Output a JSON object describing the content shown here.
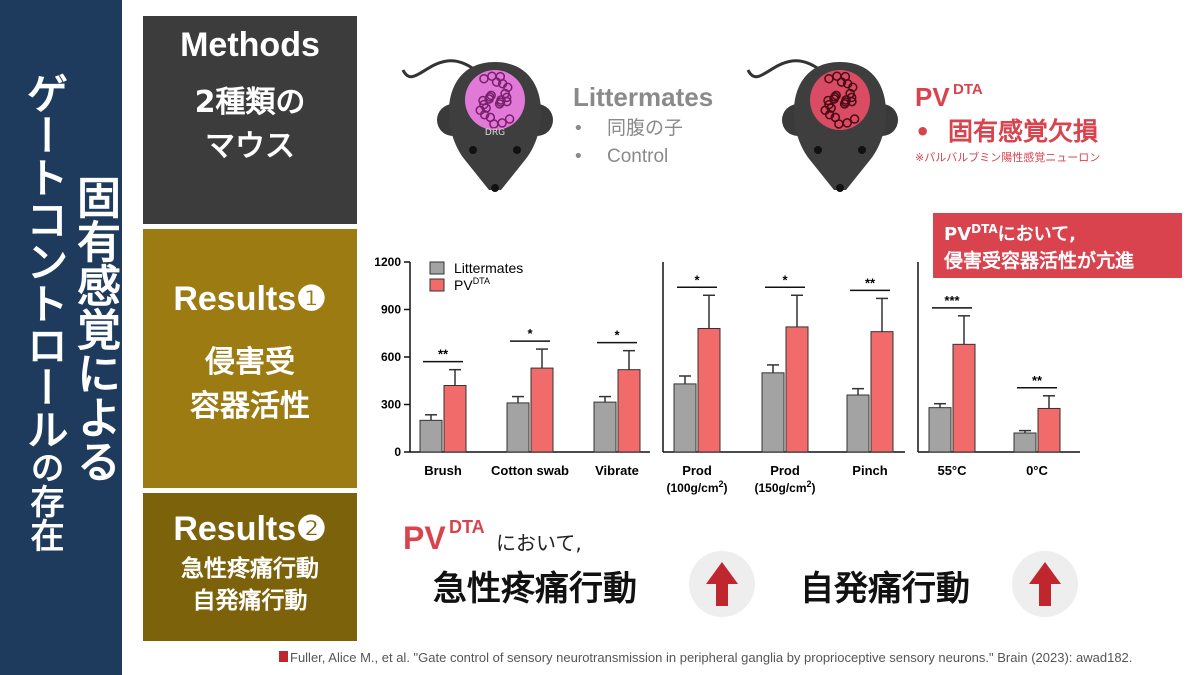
{
  "sidebar": {
    "line1": "固有感覚による",
    "line2_main": "ゲートコントロール",
    "line2_tail": "の存在"
  },
  "panels": {
    "methods": {
      "title": "Methods",
      "body": [
        "2種類の",
        "マウス"
      ]
    },
    "results1": {
      "title": "Results",
      "number": "❶",
      "body": [
        "侵害受",
        "容器活性"
      ]
    },
    "results2": {
      "title": "Results",
      "number": "❷",
      "body": [
        "急性疼痛行動",
        "自発痛行動"
      ]
    }
  },
  "mice": {
    "brain_label": "DRG",
    "bullet": "•",
    "control": {
      "name": "Littermates",
      "items": [
        "同腹の子",
        "Control"
      ]
    },
    "pv": {
      "name": "PV",
      "name_sup": "DTA",
      "items": [
        "固有感覚欠損"
      ],
      "note": "※パルバルブミン陽性感覚ニューロン"
    }
  },
  "callout": {
    "name": "PV",
    "name_sup": "DTA",
    "line1_tail": "において,",
    "line2": "侵害受容器活性が亢進"
  },
  "chart": {
    "type": "bar",
    "categories": [
      [
        "Brush"
      ],
      [
        "Cotton swab"
      ],
      [
        "Vibrate"
      ],
      [
        "Prod",
        "(100g/cm",
        "2",
        ")"
      ],
      [
        "Prod",
        "(150g/cm",
        "2",
        ")"
      ],
      [
        "Pinch"
      ],
      [
        "55°C"
      ],
      [
        "0°C"
      ]
    ],
    "series": [
      {
        "name": "Littermates",
        "color": "#a3a3a3",
        "values": [
          200,
          310,
          315,
          430,
          500,
          360,
          280,
          120
        ],
        "errors": [
          35,
          40,
          35,
          50,
          50,
          40,
          25,
          15
        ]
      },
      {
        "name": "PV",
        "name_sup": "DTA",
        "color": "#f26b6b",
        "values": [
          420,
          530,
          520,
          780,
          790,
          760,
          680,
          275
        ],
        "errors": [
          100,
          120,
          120,
          210,
          200,
          210,
          180,
          80
        ]
      }
    ],
    "significance": [
      "**",
      "*",
      "*",
      "*",
      "*",
      "**",
      "***",
      "**"
    ],
    "ylim": [
      0,
      1200
    ],
    "yticks": [
      0,
      300,
      600,
      900,
      1200
    ]
  },
  "summary": {
    "name": "PV",
    "name_sup": "DTA",
    "tail": "において,",
    "items": [
      "急性疼痛行動",
      "自発痛行動"
    ]
  },
  "citation": "Fuller, Alice M., et al. \"Gate control of sensory neurotransmission in peripheral ganglia by proprioceptive sensory neurons.\" Brain (2023): awad182."
}
